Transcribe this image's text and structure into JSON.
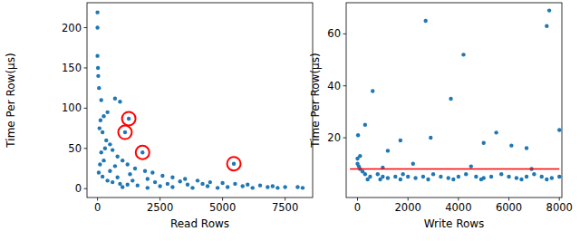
{
  "chart_data": [
    {
      "type": "scatter",
      "x_label": "Read Rows",
      "y_label": "Time Per Row(µs)",
      "xlim": [
        -420,
        8600
      ],
      "ylim": [
        -11,
        231
      ],
      "xticks": [
        0,
        2500,
        5000,
        7500
      ],
      "yticks": [
        0,
        50,
        100,
        150,
        200
      ],
      "series": [
        {
          "type": "scatter",
          "marker": "dot",
          "color": "#1f77b4",
          "x": [
            0,
            0,
            0,
            20,
            30,
            60,
            150,
            700,
            900,
            400,
            250,
            120,
            80,
            200,
            350,
            500,
            300,
            150,
            600,
            800,
            1000,
            1200,
            700,
            1500,
            1900,
            2200,
            1300,
            2600,
            3000,
            2000,
            3500,
            4000,
            3300,
            4500,
            5000,
            4200,
            5500,
            6000,
            6500,
            5800,
            7000,
            7500,
            8000,
            8200,
            7200,
            6800,
            100,
            50,
            200,
            400,
            600,
            900,
            1200,
            1600,
            2500,
            3000,
            3800,
            4800,
            2000,
            1000,
            5200,
            6200,
            1400,
            2300,
            2800,
            3600,
            4400,
            800,
            500,
            250,
            1250,
            1100,
            1800,
            5450
          ],
          "values": [
            219,
            200,
            165,
            150,
            140,
            125,
            110,
            112,
            108,
            95,
            90,
            85,
            75,
            70,
            60,
            55,
            50,
            45,
            48,
            40,
            35,
            30,
            28,
            25,
            22,
            20,
            18,
            16,
            14,
            12,
            12,
            10,
            9,
            8,
            7,
            6,
            6,
            5,
            4,
            3,
            3,
            2,
            2,
            1,
            1,
            2,
            30,
            20,
            15,
            10,
            8,
            6,
            5,
            4,
            3,
            2,
            1,
            1,
            1,
            2,
            2,
            1,
            10,
            8,
            6,
            5,
            3,
            14,
            22,
            35,
            87,
            70,
            45,
            31
          ]
        },
        {
          "type": "scatter",
          "marker": "ring",
          "color": "#ff0000",
          "x": [
            1250,
            1100,
            1800,
            5450
          ],
          "values": [
            87,
            70,
            45,
            31
          ]
        }
      ]
    },
    {
      "type": "scatter",
      "x_label": "Write Rows",
      "y_label": "Time Per Row(µs)",
      "xlim": [
        -450,
        8100
      ],
      "ylim": [
        -3,
        72
      ],
      "xticks": [
        0,
        2000,
        4000,
        6000,
        8000
      ],
      "yticks": [
        20,
        40,
        60
      ],
      "series": [
        {
          "type": "scatter",
          "marker": "dot",
          "color": "#1f77b4",
          "x": [
            0,
            0,
            50,
            100,
            200,
            300,
            500,
            800,
            1000,
            1200,
            1500,
            1800,
            2000,
            2300,
            2600,
            3000,
            3300,
            3600,
            4000,
            4300,
            4700,
            5000,
            5300,
            5700,
            6000,
            6300,
            6700,
            7000,
            7300,
            7700,
            8000,
            400,
            900,
            1700,
            2800,
            3800,
            4900,
            6500,
            7500,
            100,
            20,
            300,
            600,
            1200,
            1700,
            2700,
            2900,
            3700,
            4200,
            5000,
            5500,
            6100,
            6700,
            7500,
            7600,
            8000,
            2200,
            4500,
            6900,
            1000
          ],
          "values": [
            12,
            10,
            9,
            8,
            7,
            6,
            5,
            6,
            5,
            4.5,
            5,
            6,
            5,
            4.5,
            5,
            6,
            5,
            4.5,
            5,
            6,
            5,
            4.5,
            5,
            6,
            5,
            4.5,
            5,
            6,
            5,
            4.5,
            5,
            4,
            4,
            4,
            4,
            4,
            4,
            4,
            4,
            13,
            21,
            25,
            38,
            15,
            19,
            65,
            20,
            35,
            52,
            18,
            22,
            17,
            16,
            63,
            69,
            23,
            10,
            9,
            8,
            8.5
          ]
        },
        {
          "type": "line",
          "line_style": "solid",
          "color": "#ff0000",
          "x": [
            -300,
            8000
          ],
          "values": [
            8,
            8
          ]
        }
      ]
    }
  ]
}
